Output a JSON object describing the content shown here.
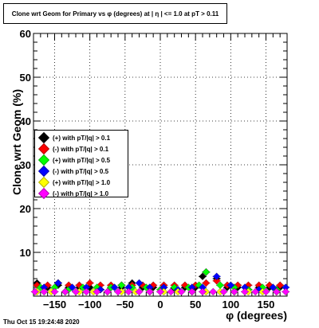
{
  "title": "Clone wrt Geom for Primary vs φ (degrees) at | η | <= 1.0 at pT > 0.11",
  "timestamp": "Thu Oct 15 19:24:48 2020",
  "chart_data": {
    "type": "scatter",
    "xlabel": "φ (degrees)",
    "ylabel": "Clone wrt Geom (%)",
    "xlim": [
      -180,
      180
    ],
    "ylim": [
      0,
      60
    ],
    "x_ticks": [
      -150,
      -100,
      -50,
      0,
      50,
      100,
      150
    ],
    "x_tick_labels": [
      "−150",
      "−100",
      "−50",
      "0",
      "50",
      "100",
      "150"
    ],
    "y_ticks": [
      10,
      20,
      30,
      40,
      50,
      60
    ],
    "y_tick_labels": [
      "10",
      "20",
      "30",
      "40",
      "50",
      "60"
    ],
    "legend_position": "left",
    "series": [
      {
        "name": "(+) with pT/|q| > 0.1",
        "color": "#000000",
        "x": [
          -175,
          -160,
          -145,
          -130,
          -115,
          -100,
          -85,
          -70,
          -55,
          -40,
          -25,
          -10,
          5,
          20,
          35,
          50,
          60,
          65,
          80,
          95,
          110,
          125,
          140,
          155,
          170
        ],
        "y": [
          3,
          2,
          2.5,
          2,
          2,
          2,
          1.5,
          2,
          2,
          3,
          2,
          2,
          2,
          1.8,
          2,
          2,
          4.5,
          5.5,
          4,
          2,
          2,
          1.5,
          2,
          2,
          2
        ]
      },
      {
        "name": "(-) with pT/|q| > 0.1",
        "color": "#ff0000",
        "x": [
          -175,
          -160,
          -145,
          -130,
          -115,
          -100,
          -85,
          -70,
          -55,
          -40,
          -25,
          -10,
          5,
          20,
          35,
          50,
          65,
          80,
          95,
          110,
          125,
          140,
          155,
          170
        ],
        "y": [
          2.5,
          2.5,
          3,
          2.5,
          2.5,
          3,
          2.5,
          2.5,
          2.5,
          2.5,
          2.5,
          2.5,
          2.5,
          2.5,
          2.5,
          2.5,
          3,
          3.5,
          2.5,
          2.5,
          2.5,
          2.5,
          2.5,
          2.5
        ]
      },
      {
        "name": "(+) with pT/|q| > 0.5",
        "color": "#00ff00",
        "x": [
          -170,
          -150,
          -130,
          -110,
          -90,
          -70,
          -55,
          -40,
          -20,
          0,
          20,
          40,
          55,
          65,
          85,
          105,
          125,
          145,
          165
        ],
        "y": [
          2,
          2,
          1.5,
          2,
          2,
          2,
          2.5,
          2,
          2,
          1.5,
          2,
          2,
          2.5,
          5.5,
          2.5,
          2,
          1.5,
          2,
          1.5
        ]
      },
      {
        "name": "(-) with pT/|q| > 0.5",
        "color": "#0000ff",
        "x": [
          -165,
          -145,
          -125,
          -105,
          -85,
          -65,
          -45,
          -30,
          -15,
          5,
          25,
          45,
          60,
          80,
          100,
          120,
          140,
          160,
          178
        ],
        "y": [
          2,
          3,
          2,
          2,
          1.5,
          2,
          2,
          3,
          2,
          2,
          1.5,
          2,
          2,
          4.5,
          2.5,
          2,
          1.5,
          2,
          2
        ]
      },
      {
        "name": "(+) with pT/|q| > 1.0",
        "color": "#ffff00",
        "x": [
          -175,
          -155,
          -135,
          -115,
          -95,
          -75,
          -55,
          -35,
          -15,
          5,
          25,
          45,
          65,
          85,
          105,
          125,
          145,
          165
        ],
        "y": [
          1,
          1,
          1,
          1,
          1,
          1,
          1,
          1,
          1,
          1,
          1,
          1,
          1,
          1,
          1,
          1,
          1,
          1
        ]
      },
      {
        "name": "(-) with pT/|q| > 1.0",
        "color": "#ff00ff",
        "x": [
          -178,
          -165,
          -150,
          -135,
          -120,
          -105,
          -90,
          -75,
          -60,
          -45,
          -30,
          -15,
          0,
          15,
          30,
          45,
          60,
          75,
          90,
          105,
          120,
          135,
          150,
          165,
          178
        ],
        "y": [
          1,
          1,
          1,
          1,
          1,
          1,
          1,
          1,
          1,
          1,
          1,
          1,
          1,
          1,
          1,
          1,
          1,
          1,
          1,
          1,
          1,
          1,
          1,
          1,
          1
        ]
      }
    ]
  }
}
